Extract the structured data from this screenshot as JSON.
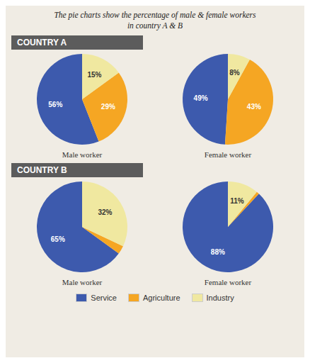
{
  "title": [
    "The pie charts show the percentage of male & female workers",
    "in country A & B"
  ],
  "chart_data": [
    {
      "type": "pie",
      "group": "COUNTRY A",
      "subtitle": "Male worker",
      "categories": [
        "Service",
        "Agriculture",
        "Industry"
      ],
      "values": [
        56,
        29,
        15
      ],
      "value_labels": [
        "56%",
        "29%",
        "15%"
      ],
      "colors": [
        "#3d5aad",
        "#f5a623",
        "#f0e8a0"
      ],
      "data_labels": true,
      "legend": "bottom"
    },
    {
      "type": "pie",
      "group": "COUNTRY A",
      "subtitle": "Female worker",
      "categories": [
        "Service",
        "Agriculture",
        "Industry"
      ],
      "values": [
        49,
        43,
        8
      ],
      "value_labels": [
        "49%",
        "43%",
        "8%"
      ],
      "colors": [
        "#3d5aad",
        "#f5a623",
        "#f0e8a0"
      ],
      "data_labels": true,
      "legend": "bottom"
    },
    {
      "type": "pie",
      "group": "COUNTRY B",
      "subtitle": "Male worker",
      "categories": [
        "Service",
        "Agriculture",
        "Industry"
      ],
      "values": [
        65,
        3,
        32
      ],
      "value_labels": [
        "65%",
        null,
        "32%"
      ],
      "colors": [
        "#3d5aad",
        "#f5a623",
        "#f0e8a0"
      ],
      "data_labels": true,
      "legend": "bottom"
    },
    {
      "type": "pie",
      "group": "COUNTRY B",
      "subtitle": "Female worker",
      "categories": [
        "Service",
        "Agriculture",
        "Industry"
      ],
      "values": [
        88,
        1,
        11
      ],
      "value_labels": [
        "88%",
        null,
        "11%"
      ],
      "colors": [
        "#3d5aad",
        "#f5a623",
        "#f0e8a0"
      ],
      "data_labels": true,
      "legend": "bottom"
    }
  ]
}
